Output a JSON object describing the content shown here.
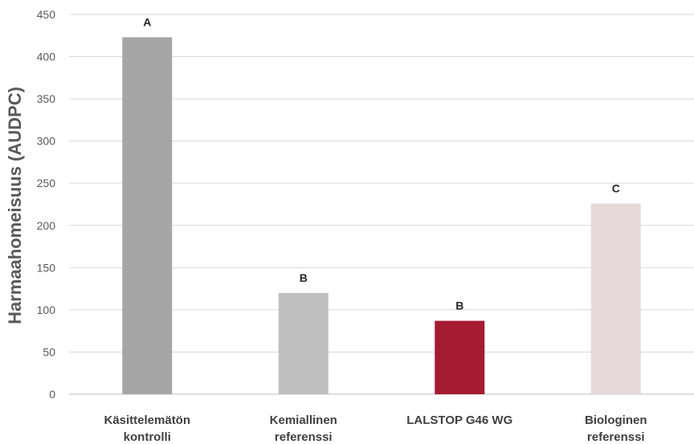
{
  "chart_data": {
    "type": "bar",
    "categories": [
      [
        "Käsittelemätön",
        "kontrolli"
      ],
      [
        "Kemiallinen",
        "referenssi"
      ],
      [
        "LALSTOP G46 WG"
      ],
      [
        "Biologinen",
        "referenssi"
      ]
    ],
    "values": [
      423,
      120,
      87,
      226
    ],
    "data_labels": [
      "A",
      "B",
      "B",
      "C"
    ],
    "bar_colors": [
      "#a6a6a6",
      "#bfbfbf",
      "#a51b31",
      "#e6d8d9"
    ],
    "ylabel": "Harmaahomeisuus (AUDPC)",
    "ylim": [
      0,
      450
    ],
    "yticks": [
      0,
      50,
      100,
      150,
      200,
      250,
      300,
      350,
      400,
      450
    ],
    "grid": true,
    "gridline_color": "#d9d9d9"
  }
}
